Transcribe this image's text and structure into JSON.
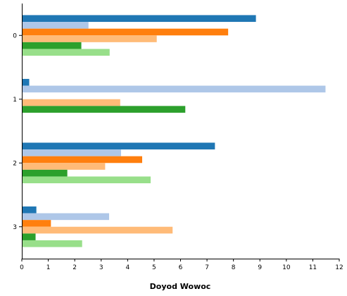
{
  "chart_data": {
    "type": "bar",
    "orientation": "horizontal",
    "categories": [
      "0",
      "1",
      "2",
      "3"
    ],
    "xlabel": "Doyod Wowoc",
    "ylabel": "",
    "xlim": [
      0,
      12
    ],
    "x_ticks": [
      "0",
      "1",
      "2",
      "3",
      "4",
      "5",
      "6",
      "7",
      "8",
      "9",
      "10",
      "11",
      "12"
    ],
    "grid": false,
    "series": [
      {
        "color": "#1f77b4",
        "values": [
          8.85,
          0.28,
          7.3,
          0.55
        ]
      },
      {
        "color": "#aec7e8",
        "values": [
          2.52,
          11.48,
          3.75,
          3.3
        ]
      },
      {
        "color": "#ff7f0e",
        "values": [
          7.8,
          0,
          4.55,
          1.1
        ]
      },
      {
        "color": "#ffbb78",
        "values": [
          5.1,
          3.72,
          3.15,
          5.7
        ]
      },
      {
        "color": "#2ca02c",
        "values": [
          2.25,
          6.18,
          1.72,
          0.52
        ]
      },
      {
        "color": "#98df8a",
        "values": [
          3.32,
          0,
          4.87,
          2.28
        ]
      }
    ]
  }
}
